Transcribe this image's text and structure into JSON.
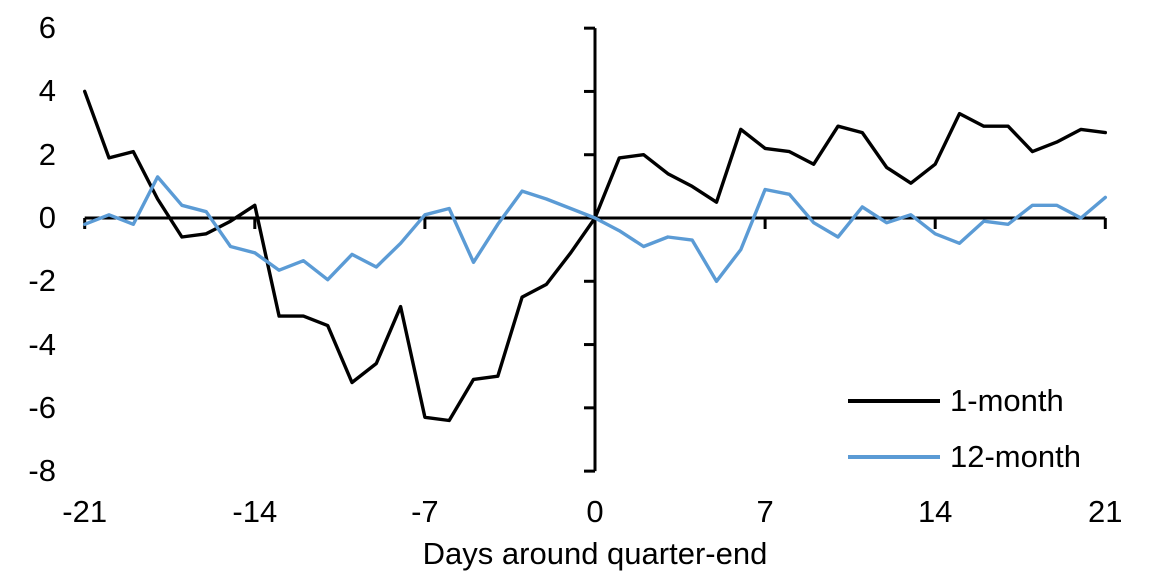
{
  "chart_data": {
    "type": "line",
    "title": "",
    "xlabel": "Days around quarter-end",
    "ylabel": "",
    "xlim": [
      -21,
      21
    ],
    "ylim": [
      -8,
      6
    ],
    "grid": false,
    "legend_position": "inside-bottom-right",
    "x_ticks": [
      -21,
      -14,
      -7,
      0,
      7,
      14,
      21
    ],
    "y_ticks": [
      6,
      4,
      2,
      0,
      -2,
      -4,
      -6,
      -8
    ],
    "x": [
      -21,
      -20,
      -19,
      -18,
      -17,
      -16,
      -15,
      -14,
      -13,
      -12,
      -11,
      -10,
      -9,
      -8,
      -7,
      -6,
      -5,
      -4,
      -3,
      -2,
      -1,
      0,
      1,
      2,
      3,
      4,
      5,
      6,
      7,
      8,
      9,
      10,
      11,
      12,
      13,
      14,
      15,
      16,
      17,
      18,
      19,
      20,
      21
    ],
    "series": [
      {
        "name": "1-month",
        "color": "#000000",
        "values": [
          4.0,
          1.9,
          2.1,
          0.6,
          -0.6,
          -0.5,
          -0.1,
          0.4,
          -3.1,
          -3.1,
          -3.4,
          -5.2,
          -4.6,
          -2.8,
          -6.3,
          -6.4,
          -5.1,
          -5.0,
          -2.5,
          -2.1,
          -1.1,
          0.0,
          1.9,
          2.0,
          1.4,
          1.0,
          0.5,
          2.8,
          2.2,
          2.1,
          1.7,
          2.9,
          2.7,
          1.6,
          1.1,
          1.7,
          3.3,
          2.9,
          2.9,
          2.1,
          2.4,
          2.8,
          2.7
        ]
      },
      {
        "name": "12-month",
        "color": "#5B9BD5",
        "values": [
          -0.2,
          0.1,
          -0.2,
          1.3,
          0.4,
          0.2,
          -0.9,
          -1.1,
          -1.65,
          -1.35,
          -1.95,
          -1.15,
          -1.55,
          -0.8,
          0.1,
          0.3,
          -1.4,
          -0.2,
          0.85,
          0.6,
          0.3,
          0.0,
          -0.4,
          -0.9,
          -0.6,
          -0.7,
          -2.0,
          -1.0,
          0.9,
          0.75,
          -0.15,
          -0.6,
          0.35,
          -0.15,
          0.1,
          -0.5,
          -0.8,
          -0.1,
          -0.2,
          0.4,
          0.4,
          0.0,
          0.65
        ]
      }
    ]
  }
}
